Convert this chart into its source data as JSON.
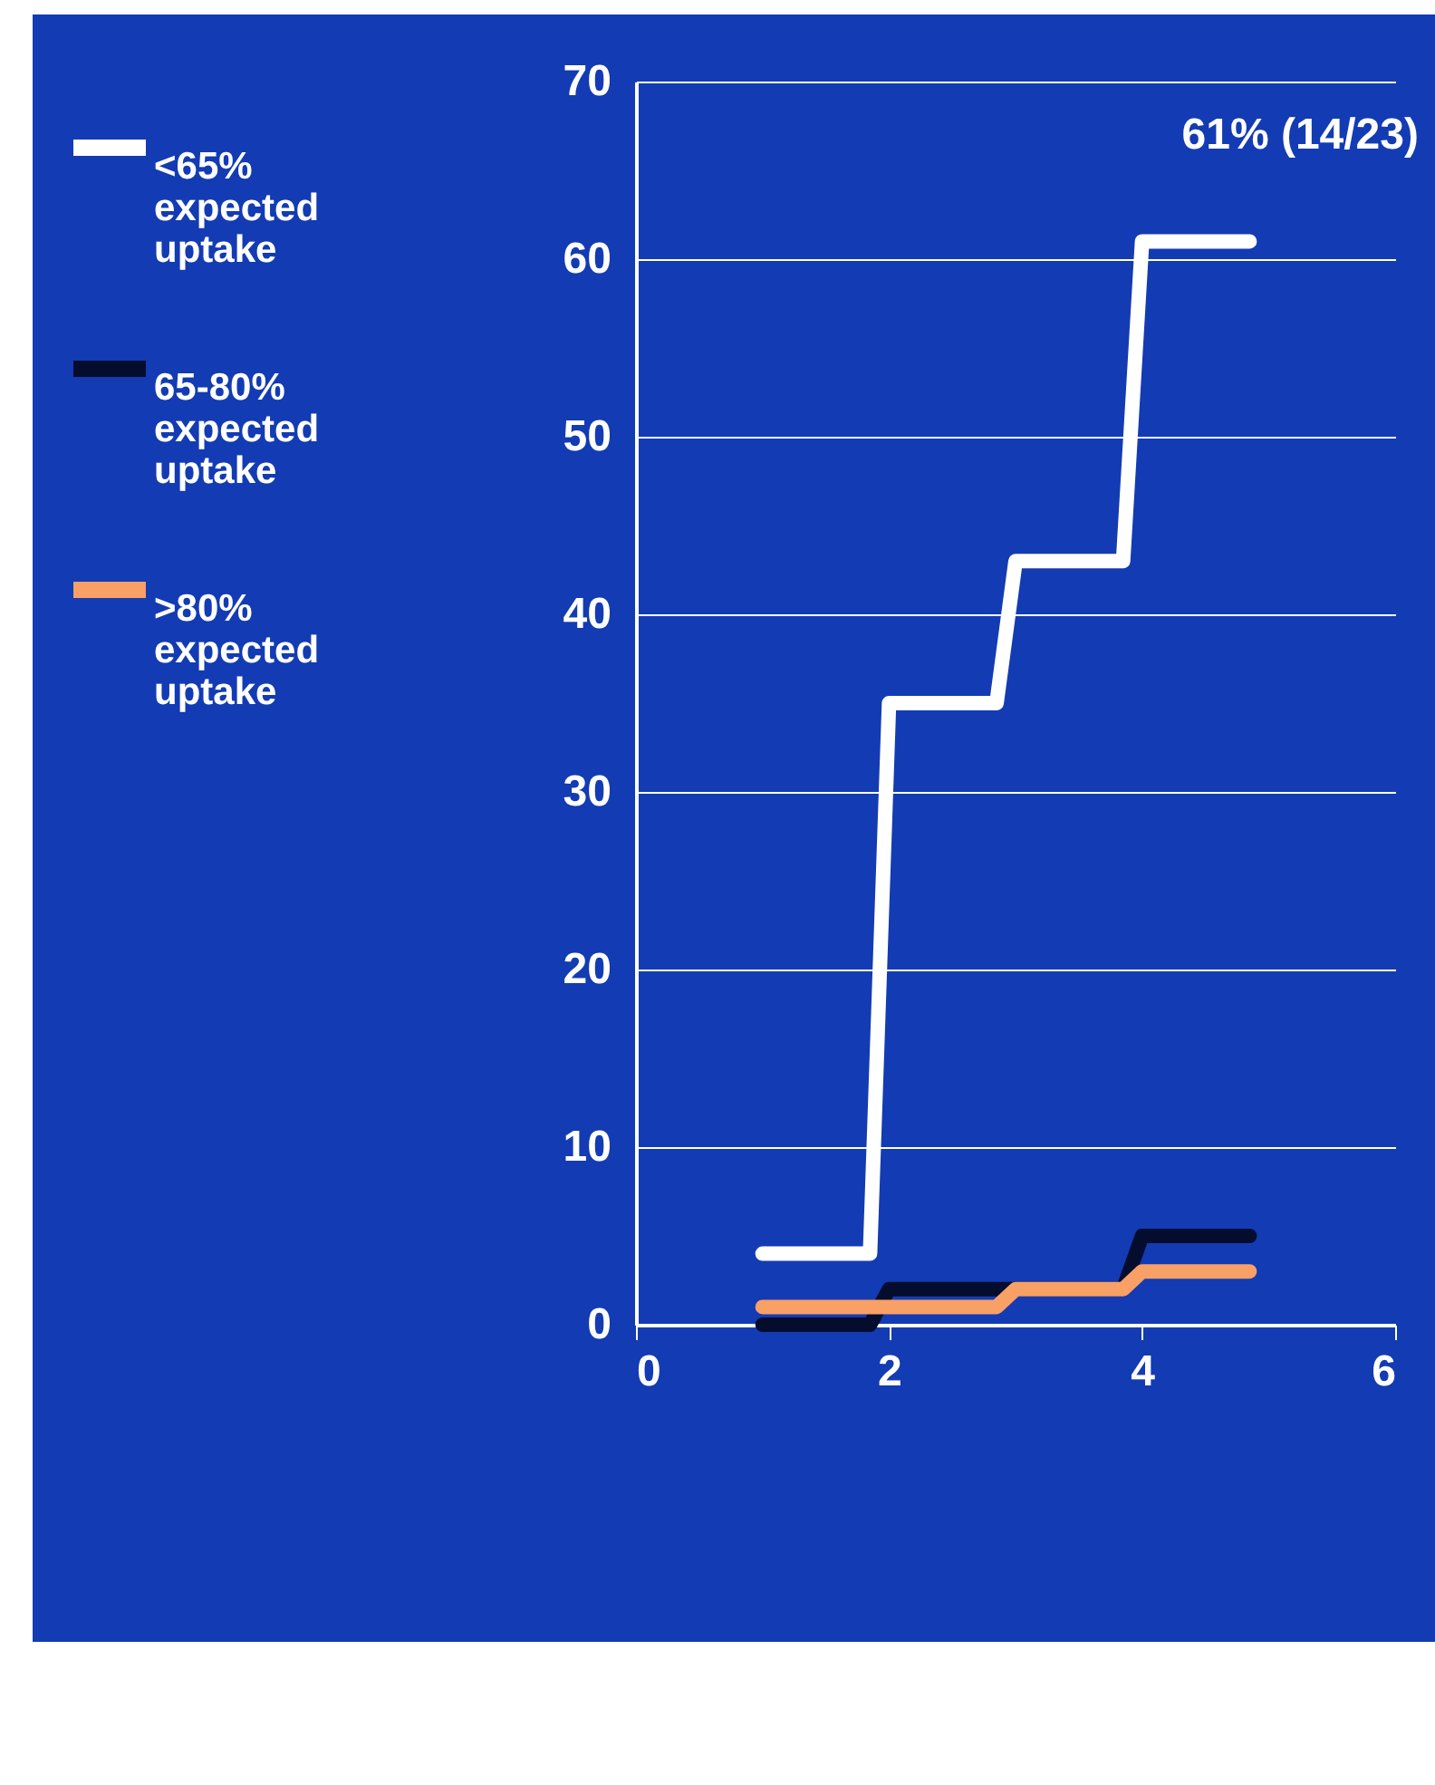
{
  "chart_data": {
    "type": "line",
    "annotations": [
      "61% (14/23)"
    ],
    "xlim": [
      0,
      6
    ],
    "xticks": [
      0,
      2,
      4,
      6
    ],
    "ylim": [
      0,
      70
    ],
    "yticks": [
      0,
      10,
      20,
      30,
      40,
      50,
      60,
      70
    ],
    "grid": "y",
    "legend": "top left",
    "line_style": "solid",
    "marker": "none",
    "series": [
      {
        "name": "<65% expected uptake",
        "color": "#ffffff",
        "x": [
          1,
          1.85,
          2,
          2.85,
          3,
          3.85,
          4,
          4.85
        ],
        "values": [
          4,
          4,
          35,
          35,
          43,
          43,
          61,
          61
        ]
      },
      {
        "name": "65-80% expected uptake",
        "color": "#050d2e",
        "x": [
          1,
          1.85,
          2,
          2.85,
          3,
          3.85,
          4,
          4.85
        ],
        "values": [
          0,
          0,
          2,
          2,
          2,
          2,
          5,
          5
        ]
      },
      {
        "name": ">80% expected uptake",
        "color": "#f9a066",
        "x": [
          1,
          1.85,
          2,
          2.85,
          3,
          3.85,
          4,
          4.85
        ],
        "values": [
          1,
          1,
          1,
          1,
          2,
          2,
          3,
          3
        ]
      }
    ]
  }
}
